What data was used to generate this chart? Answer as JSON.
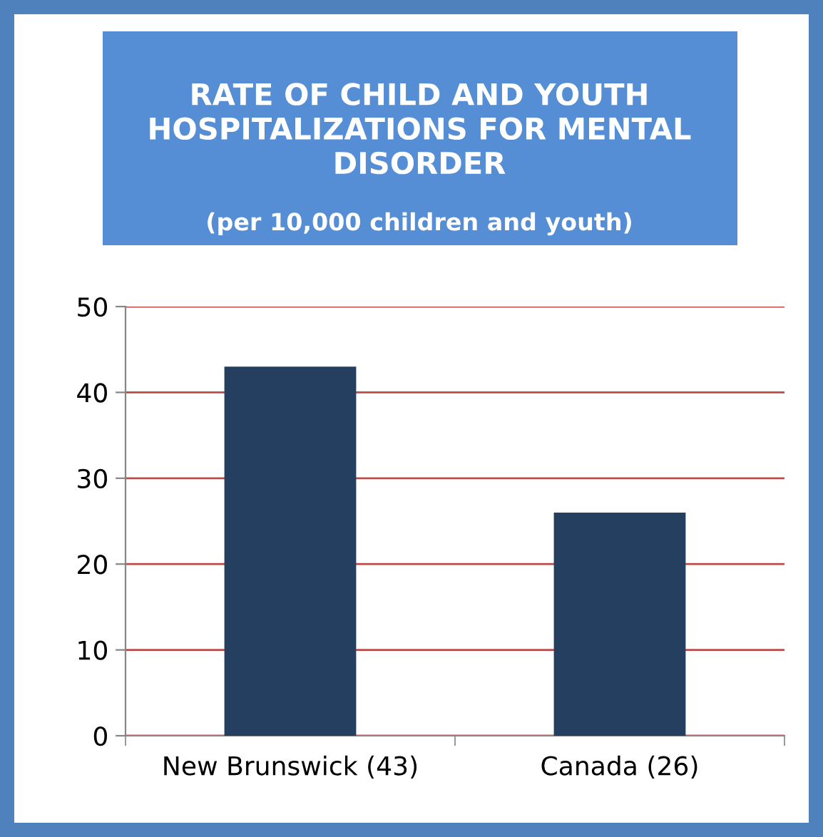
{
  "chart_data": {
    "type": "bar",
    "title": "RATE OF CHILD AND YOUTH\nHOSPITALIZATIONS FOR MENTAL\nDISORDER",
    "subtitle": "(per 10,000 children and youth)",
    "categories": [
      "New Brunswick (43)",
      "Canada (26)"
    ],
    "values": [
      43,
      26
    ],
    "color": "#243f60",
    "ylim": [
      0,
      50
    ],
    "yticks": [
      0,
      10,
      20,
      30,
      40,
      50
    ],
    "grid": "y"
  }
}
